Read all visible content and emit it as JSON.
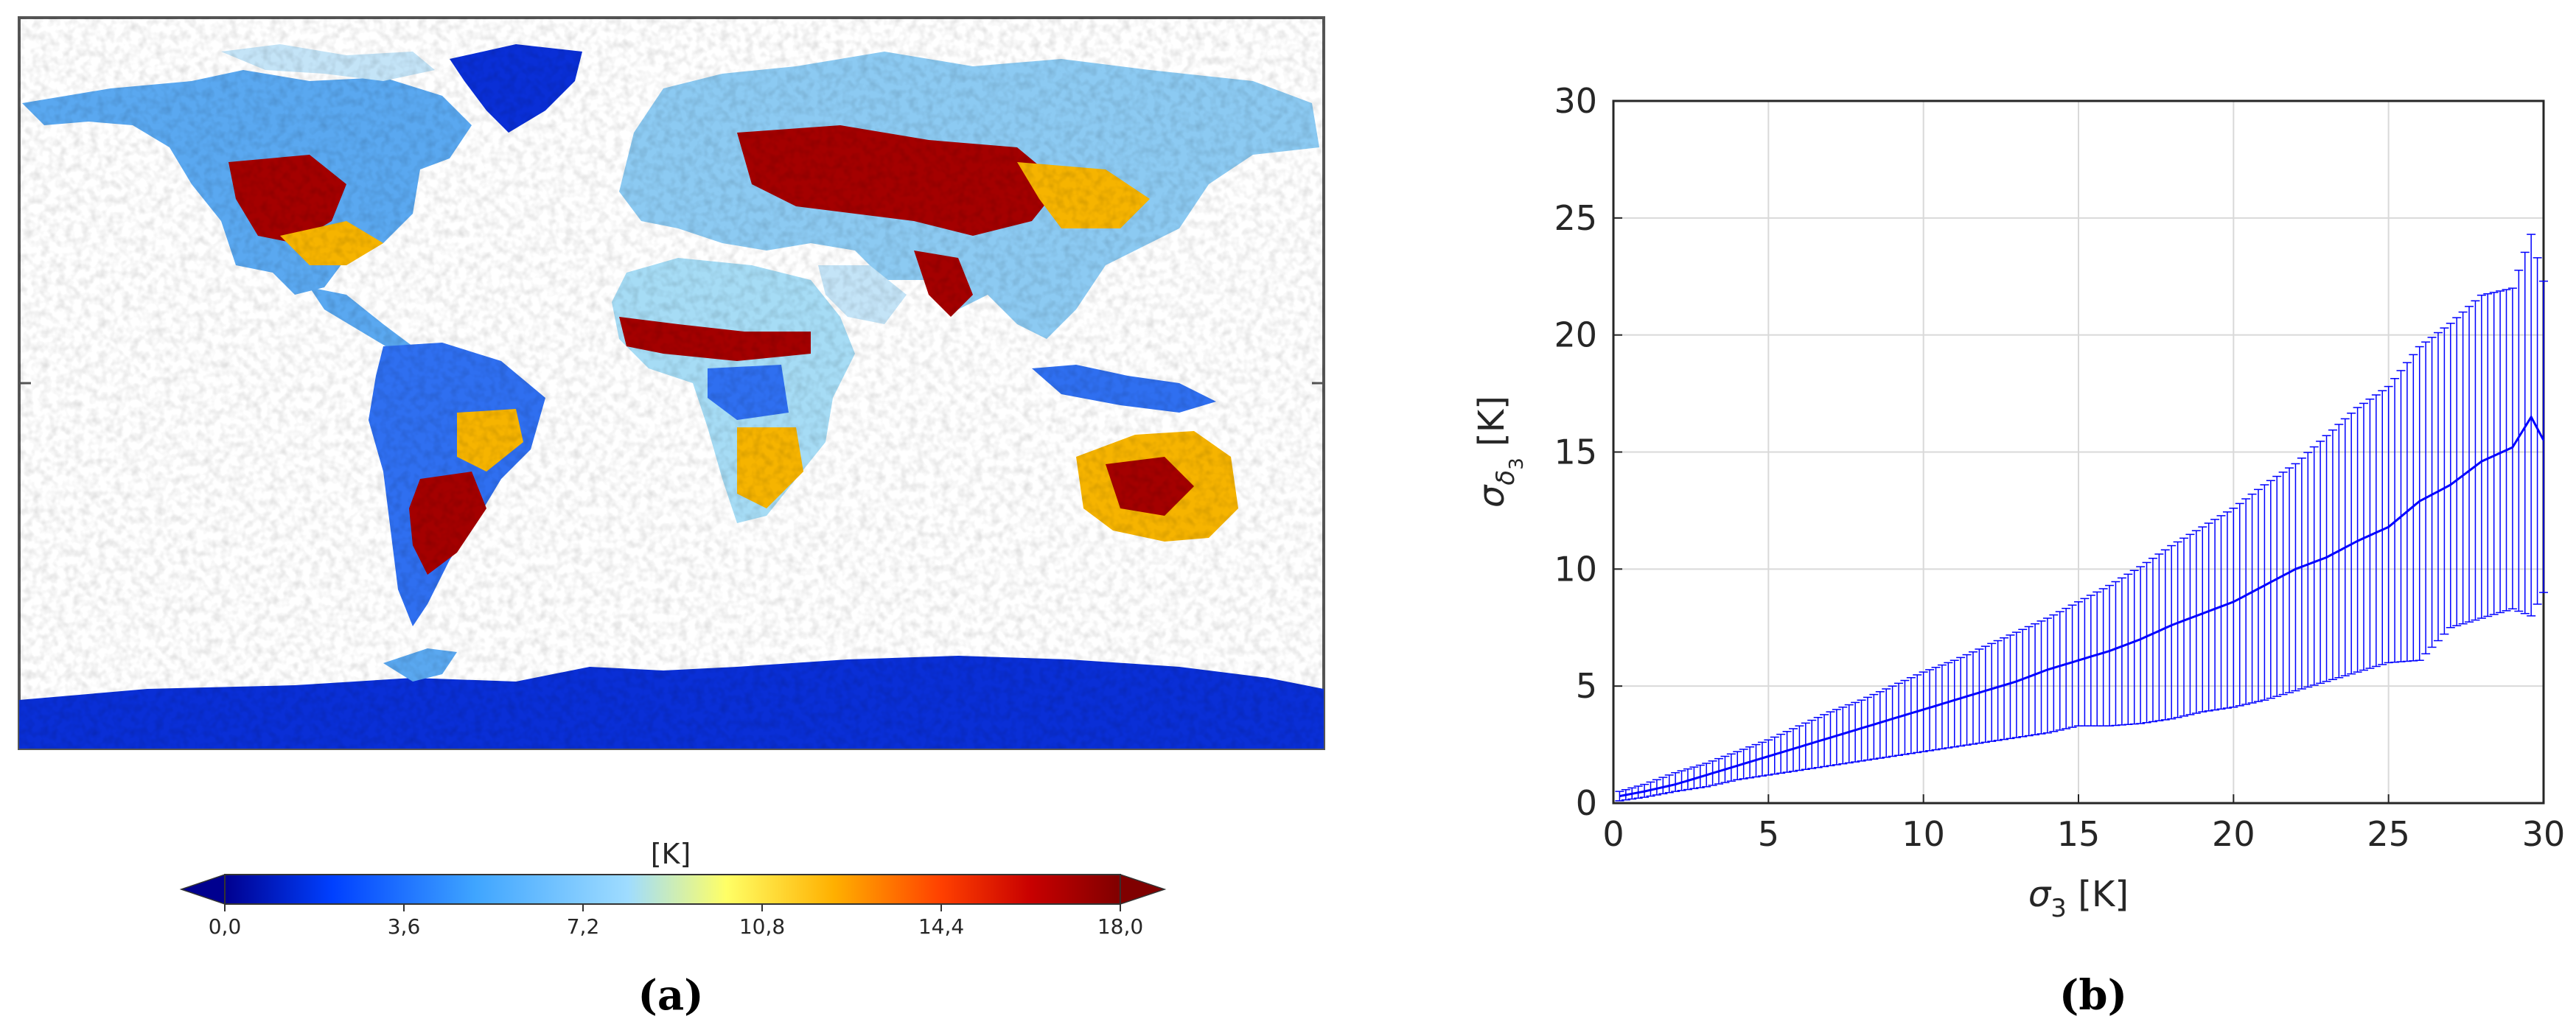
{
  "panel_a": {
    "caption": "(a)",
    "colorbar": {
      "unit": "[K]",
      "ticks": [
        "0,0",
        "3,6",
        "7,2",
        "10,8",
        "14,4",
        "18,0"
      ],
      "range": [
        0,
        18
      ],
      "colormap": [
        "#00008f",
        "#0040ff",
        "#3fa5ff",
        "#9fdcff",
        "#ffff66",
        "#ffb000",
        "#ff4000",
        "#c80000",
        "#800000"
      ],
      "extend": "both"
    },
    "map_colors": {
      "low": "#0a2fd6",
      "mid_low": "#5aa8f0",
      "mid": "#a6dcf5",
      "high": "#f6b400",
      "very_high": "#a40000"
    }
  },
  "panel_b": {
    "caption": "(b)",
    "series_color": "#0000ff"
  },
  "chart_data": [
    {
      "type": "heatmap",
      "title": "",
      "description_units": "[K]",
      "color_range": [
        0,
        18
      ],
      "colorbar_ticks": [
        0.0,
        3.6,
        7.2,
        10.8,
        14.4,
        18.0
      ]
    },
    {
      "type": "line",
      "xlabel": "σ3 [K]",
      "ylabel": "σδ3 [K]",
      "xlim": [
        0,
        30
      ],
      "ylim": [
        0,
        30
      ],
      "xticks": [
        0,
        5,
        10,
        15,
        20,
        25,
        30
      ],
      "yticks": [
        0,
        5,
        10,
        15,
        20,
        25,
        30
      ],
      "grid": true,
      "legend": "none",
      "series": [
        {
          "x": [
            0.2,
            1,
            2,
            3,
            4,
            5,
            6,
            7,
            8,
            9,
            10,
            11,
            12,
            13,
            14,
            15,
            16,
            17,
            18,
            19,
            20,
            21,
            22,
            23,
            24,
            25,
            26,
            27,
            28,
            29,
            29.6,
            30
          ],
          "y": [
            0.3,
            0.5,
            0.8,
            1.2,
            1.6,
            2.0,
            2.4,
            2.8,
            3.2,
            3.6,
            4.0,
            4.4,
            4.8,
            5.2,
            5.7,
            6.1,
            6.5,
            7.0,
            7.6,
            8.1,
            8.6,
            9.3,
            10.0,
            10.5,
            11.2,
            11.8,
            12.9,
            13.6,
            14.6,
            15.2,
            16.5,
            15.5
          ],
          "error_low": [
            0.1,
            0.25,
            0.5,
            0.7,
            1.0,
            1.2,
            1.4,
            1.6,
            1.8,
            2.0,
            2.2,
            2.4,
            2.6,
            2.8,
            3.0,
            3.3,
            3.3,
            3.4,
            3.6,
            3.9,
            4.1,
            4.4,
            4.8,
            5.2,
            5.6,
            6.0,
            6.1,
            7.5,
            7.9,
            8.3,
            8.0,
            9.0
          ],
          "error_high": [
            0.5,
            0.8,
            1.3,
            1.7,
            2.2,
            2.7,
            3.3,
            3.9,
            4.4,
            5.0,
            5.6,
            6.1,
            6.7,
            7.3,
            7.9,
            8.6,
            9.3,
            10.1,
            11.0,
            11.8,
            12.6,
            13.6,
            14.5,
            15.7,
            16.9,
            17.8,
            19.5,
            20.5,
            21.7,
            22.0,
            24.3,
            22.3
          ]
        }
      ]
    }
  ]
}
